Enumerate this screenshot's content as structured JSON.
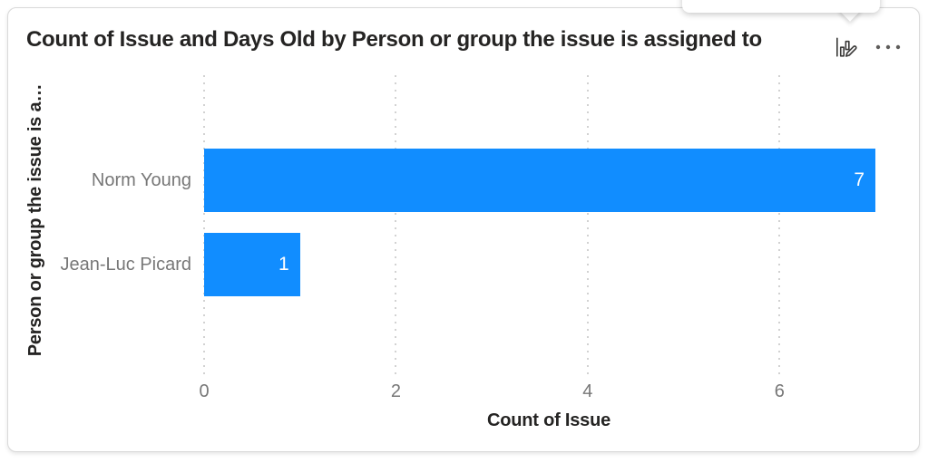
{
  "card": {
    "title": "Count of Issue and Days Old by Person or group the issue is assigned to",
    "header_icons": [
      {
        "name": "personalize-visual-icon",
        "label": "Personalize this visual"
      },
      {
        "name": "more-options-icon",
        "label": "More options"
      }
    ],
    "tooltip_popup": {
      "visible": true,
      "text": ""
    }
  },
  "chart_data": {
    "type": "bar",
    "orientation": "horizontal",
    "title": "Count of Issue and Days Old by Person or group the issue is assigned to",
    "categories": [
      "Norm Young",
      "Jean-Luc Picard"
    ],
    "series": [
      {
        "name": "Count of Issue",
        "values": [
          7,
          1
        ]
      }
    ],
    "values": [
      7,
      1
    ],
    "data_labels": [
      "7",
      "1"
    ],
    "xlabel": "Count of Issue",
    "ylabel": "Person or group the issue is a…",
    "x_ticks": [
      "0",
      "2",
      "4",
      "6"
    ],
    "x_tick_values": [
      0,
      2,
      4,
      6
    ],
    "xlim": [
      0,
      7
    ],
    "grid": "vertical-dotted",
    "legend": "none",
    "bar_color": "#118DFF",
    "label_inside_color": "#FFFFFF",
    "label_outside_color": "#777777"
  },
  "colors": {
    "bar": "#118DFF",
    "title_text": "#252423",
    "axis_title_text": "#252423",
    "tick_text": "#777777",
    "gridline": "#d2d2d2",
    "card_border": "#d9d9d9",
    "background": "#ffffff",
    "icon": "#3b3a39"
  }
}
